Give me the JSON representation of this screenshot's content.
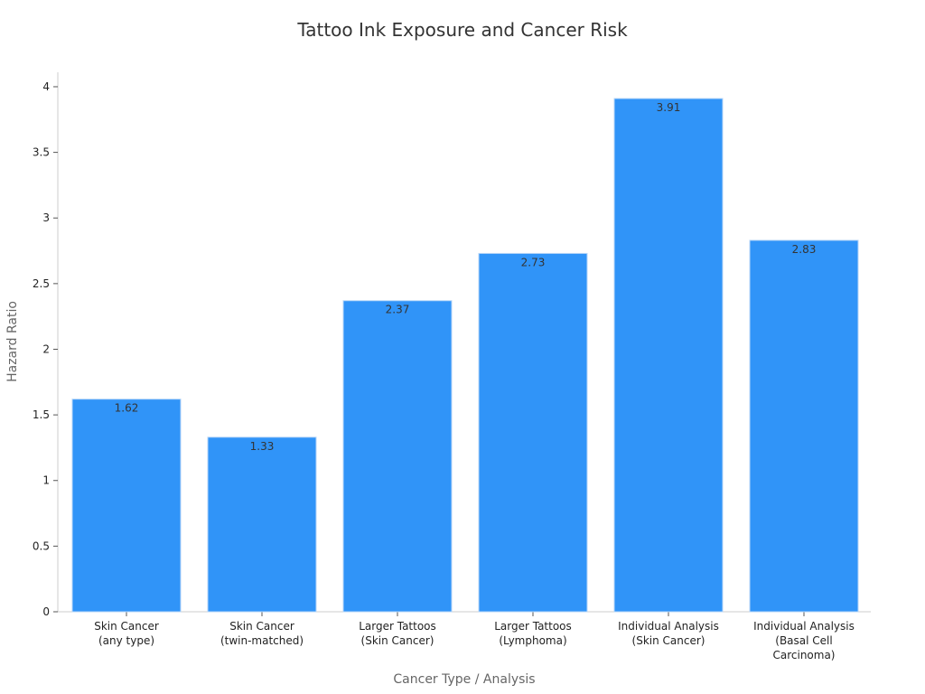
{
  "chart_data": {
    "type": "bar",
    "title": "Tattoo Ink Exposure and Cancer Risk",
    "xlabel": "Cancer Type / Analysis",
    "ylabel": "Hazard Ratio",
    "categories": [
      [
        "Skin Cancer",
        "(any type)"
      ],
      [
        "Skin Cancer",
        "(twin-matched)"
      ],
      [
        "Larger Tattoos",
        "(Skin Cancer)"
      ],
      [
        "Larger Tattoos",
        "(Lymphoma)"
      ],
      [
        "Individual Analysis",
        "(Skin Cancer)"
      ],
      [
        "Individual Analysis",
        "(Basal Cell",
        "Carcinoma)"
      ]
    ],
    "values": [
      1.62,
      1.33,
      2.37,
      2.73,
      3.91,
      2.83
    ],
    "data_labels": [
      "1.62",
      "1.33",
      "2.37",
      "2.73",
      "3.91",
      "2.83"
    ],
    "yticks": [
      "0",
      "0.5",
      "1",
      "1.5",
      "2",
      "2.5",
      "3",
      "3.5",
      "4"
    ],
    "ytick_values": [
      0,
      0.5,
      1,
      1.5,
      2,
      2.5,
      3,
      3.5,
      4
    ],
    "ylim": [
      0,
      4.11
    ],
    "grid": false,
    "legend": "none",
    "colors": {
      "bar": "#3094f8",
      "bar_edge": "#b7d6f7"
    }
  }
}
